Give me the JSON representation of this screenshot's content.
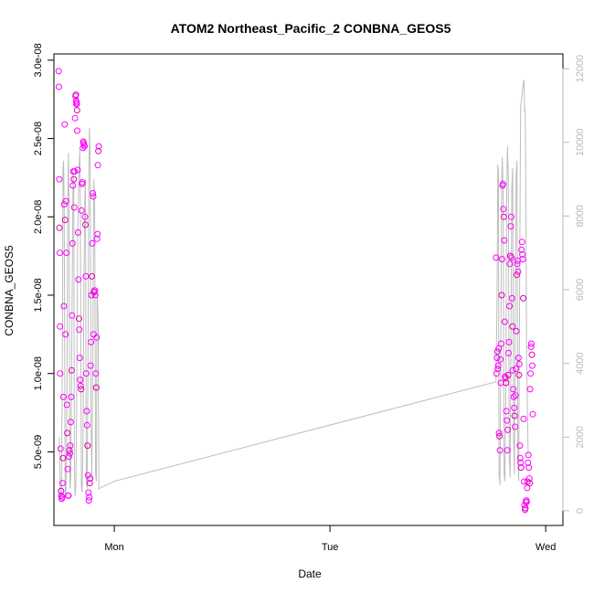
{
  "chart_data": {
    "type": "scatter",
    "title": "ATOM2 Northeast_Pacific_2 CONBNA_GEOS5",
    "xlabel": "Date",
    "ylabel": "CONBNA_GEOS5",
    "x_ticks": [
      "Mon",
      "Tue",
      "Wed"
    ],
    "x_tick_values": [
      1.0,
      2.0,
      3.0
    ],
    "xlim": [
      0.72,
      3.08
    ],
    "ylim": [
      3e-10,
      3.04e-08
    ],
    "y_ticks": [
      "5.0e-09",
      "1.0e-08",
      "1.5e-08",
      "2.0e-08",
      "2.5e-08",
      "3.0e-08"
    ],
    "y_tick_values": [
      5e-09,
      1e-08,
      1.5e-08,
      2e-08,
      2.5e-08,
      3e-08
    ],
    "y2lim": [
      -400,
      12400
    ],
    "y2_ticks": [
      "0",
      "2000",
      "4000",
      "6000",
      "8000",
      "10000",
      "12000"
    ],
    "y2_tick_values": [
      0,
      2000,
      4000,
      6000,
      8000,
      10000,
      12000
    ],
    "grid": false,
    "colors": {
      "points": "#ff00ff",
      "points_alt": "#dd00aa",
      "line": "#bdbdbd",
      "right_axis": "#b8b8b8",
      "axis": "#000000"
    },
    "series": [
      {
        "type": "scatter",
        "axis": "left",
        "points": [
          [
            0.742,
            2.93e-08
          ],
          [
            0.743,
            2.83e-08
          ],
          [
            0.745,
            2.24e-08
          ],
          [
            0.746,
            1.93e-08
          ],
          [
            0.747,
            1.77e-08
          ],
          [
            0.748,
            1.3e-08
          ],
          [
            0.749,
            1e-08
          ],
          [
            0.751,
            5.2e-09
          ],
          [
            0.753,
            2.5e-09
          ],
          [
            0.754,
            2.2e-09
          ],
          [
            0.756,
            2e-09
          ],
          [
            0.758,
            2.1e-09
          ],
          [
            0.76,
            3e-09
          ],
          [
            0.762,
            4.6e-09
          ],
          [
            0.764,
            8.5e-09
          ],
          [
            0.766,
            1.43e-08
          ],
          [
            0.768,
            2.08e-08
          ],
          [
            0.77,
            2.59e-08
          ],
          [
            0.772,
            1.98e-08
          ],
          [
            0.774,
            1.25e-08
          ],
          [
            0.776,
            2.1e-08
          ],
          [
            0.778,
            1.77e-08
          ],
          [
            0.78,
            8e-09
          ],
          [
            0.782,
            6.2e-09
          ],
          [
            0.784,
            3.9e-09
          ],
          [
            0.786,
            2.2e-09
          ],
          [
            0.788,
            2.2e-09
          ],
          [
            0.79,
            4.7e-09
          ],
          [
            0.792,
            5.1e-09
          ],
          [
            0.794,
            4.9e-09
          ],
          [
            0.796,
            5.4e-09
          ],
          [
            0.798,
            6.9e-09
          ],
          [
            0.8,
            8.5e-09
          ],
          [
            0.802,
            1.02e-08
          ],
          [
            0.804,
            1.37e-08
          ],
          [
            0.806,
            1.83e-08
          ],
          [
            0.808,
            2.2e-08
          ],
          [
            0.81,
            2.29e-08
          ],
          [
            0.812,
            2.24e-08
          ],
          [
            0.814,
            2.06e-08
          ],
          [
            0.816,
            2.29e-08
          ],
          [
            0.818,
            2.63e-08
          ],
          [
            0.82,
            2.77e-08
          ],
          [
            0.822,
            2.78e-08
          ],
          [
            0.823,
            2.74e-08
          ],
          [
            0.824,
            2.72e-08
          ],
          [
            0.825,
            2.73e-08
          ],
          [
            0.826,
            2.72e-08
          ],
          [
            0.827,
            2.68e-08
          ],
          [
            0.828,
            2.55e-08
          ],
          [
            0.83,
            2.3e-08
          ],
          [
            0.832,
            1.9e-08
          ],
          [
            0.834,
            1.6e-08
          ],
          [
            0.836,
            1.35e-08
          ],
          [
            0.838,
            1.28e-08
          ],
          [
            0.84,
            1.1e-08
          ],
          [
            0.842,
            9.6e-09
          ],
          [
            0.844,
            9.2e-09
          ],
          [
            0.846,
            9e-09
          ],
          [
            0.848,
            2.04e-08
          ],
          [
            0.85,
            2.21e-08
          ],
          [
            0.852,
            2.22e-08
          ],
          [
            0.854,
            2.44e-08
          ],
          [
            0.856,
            2.48e-08
          ],
          [
            0.858,
            2.47e-08
          ],
          [
            0.86,
            2.46e-08
          ],
          [
            0.862,
            2.45e-08
          ],
          [
            0.864,
            2e-08
          ],
          [
            0.866,
            1.95e-08
          ],
          [
            0.868,
            1.62e-08
          ],
          [
            0.87,
            1e-08
          ],
          [
            0.872,
            7.6e-09
          ],
          [
            0.874,
            6.7e-09
          ],
          [
            0.876,
            5.4e-09
          ],
          [
            0.878,
            3.5e-09
          ],
          [
            0.88,
            2.4e-09
          ],
          [
            0.882,
            1.9e-09
          ],
          [
            0.884,
            2.1e-09
          ],
          [
            0.886,
            3e-09
          ],
          [
            0.888,
            3.3e-09
          ],
          [
            0.89,
            1.05e-08
          ],
          [
            0.892,
            1.2e-08
          ],
          [
            0.894,
            1.5e-08
          ],
          [
            0.896,
            1.62e-08
          ],
          [
            0.898,
            1.83e-08
          ],
          [
            0.9,
            2.15e-08
          ],
          [
            0.902,
            2.13e-08
          ],
          [
            0.904,
            1.25e-08
          ],
          [
            0.906,
            1.52e-08
          ],
          [
            0.908,
            1.53e-08
          ],
          [
            0.91,
            1.53e-08
          ],
          [
            0.912,
            1.5e-08
          ],
          [
            0.914,
            1e-08
          ],
          [
            0.916,
            9.1e-09
          ],
          [
            0.918,
            1.23e-08
          ],
          [
            0.92,
            1.86e-08
          ],
          [
            0.922,
            1.89e-08
          ],
          [
            0.924,
            2.33e-08
          ],
          [
            0.926,
            2.42e-08
          ],
          [
            0.928,
            2.45e-08
          ],
          [
            2.77,
            1.74e-08
          ],
          [
            2.772,
            1e-08
          ],
          [
            2.774,
            1.1e-08
          ],
          [
            2.776,
            1.14e-08
          ],
          [
            2.778,
            1.03e-08
          ],
          [
            2.78,
            1.05e-08
          ],
          [
            2.782,
            1.16e-08
          ],
          [
            2.784,
            6.2e-09
          ],
          [
            2.786,
            6e-09
          ],
          [
            2.788,
            5.1e-09
          ],
          [
            2.79,
            1.09e-08
          ],
          [
            2.792,
            9.4e-09
          ],
          [
            2.794,
            1.19e-08
          ],
          [
            2.796,
            1.5e-08
          ],
          [
            2.798,
            1.73e-08
          ],
          [
            2.8,
            2.2e-08
          ],
          [
            2.802,
            2.21e-08
          ],
          [
            2.804,
            2.05e-08
          ],
          [
            2.806,
            2e-08
          ],
          [
            2.808,
            1.85e-08
          ],
          [
            2.81,
            1.33e-08
          ],
          [
            2.812,
            9.8e-09
          ],
          [
            2.814,
            9.7e-09
          ],
          [
            2.816,
            9.4e-09
          ],
          [
            2.818,
            7.6e-09
          ],
          [
            2.82,
            7e-09
          ],
          [
            2.822,
            5.1e-09
          ],
          [
            2.824,
            6.4e-09
          ],
          [
            2.826,
            9.9e-09
          ],
          [
            2.828,
            1.13e-08
          ],
          [
            2.83,
            1.2e-08
          ],
          [
            2.832,
            1.43e-08
          ],
          [
            2.834,
            1.7e-08
          ],
          [
            2.836,
            1.75e-08
          ],
          [
            2.838,
            1.94e-08
          ],
          [
            2.84,
            2e-08
          ],
          [
            2.842,
            1.74e-08
          ],
          [
            2.844,
            1.48e-08
          ],
          [
            2.846,
            1.3e-08
          ],
          [
            2.848,
            1.02e-08
          ],
          [
            2.85,
            9e-09
          ],
          [
            2.852,
            8.5e-09
          ],
          [
            2.854,
            7.8e-09
          ],
          [
            2.856,
            7.3e-09
          ],
          [
            2.858,
            6.6e-09
          ],
          [
            2.86,
            8.6e-09
          ],
          [
            2.862,
            1.03e-08
          ],
          [
            2.864,
            1.27e-08
          ],
          [
            2.866,
            1.63e-08
          ],
          [
            2.868,
            1.7e-08
          ],
          [
            2.87,
            1.72e-08
          ],
          [
            2.872,
            1.65e-08
          ],
          [
            2.874,
            1.1e-08
          ],
          [
            2.876,
            9.9e-09
          ],
          [
            2.878,
            1.06e-08
          ],
          [
            2.88,
            5.4e-09
          ],
          [
            2.882,
            4.6e-09
          ],
          [
            2.884,
            4.3e-09
          ],
          [
            2.886,
            4e-09
          ],
          [
            2.888,
            1.79e-08
          ],
          [
            2.89,
            1.84e-08
          ],
          [
            2.892,
            1.76e-08
          ],
          [
            2.894,
            1.73e-08
          ],
          [
            2.896,
            1.48e-08
          ],
          [
            2.898,
            7.1e-09
          ],
          [
            2.9,
            3.1e-09
          ],
          [
            2.902,
            1.6e-09
          ],
          [
            2.904,
            1.3e-09
          ],
          [
            2.906,
            1.4e-09
          ],
          [
            2.908,
            1.8e-09
          ],
          [
            2.91,
            1.9e-09
          ],
          [
            2.912,
            1.8e-09
          ],
          [
            2.914,
            2.7e-09
          ],
          [
            2.916,
            3.1e-09
          ],
          [
            2.918,
            4.3e-09
          ],
          [
            2.92,
            4.8e-09
          ],
          [
            2.922,
            4e-09
          ],
          [
            2.924,
            3.3e-09
          ],
          [
            2.926,
            3e-09
          ],
          [
            2.928,
            9e-09
          ],
          [
            2.93,
            1e-08
          ],
          [
            2.932,
            1.17e-08
          ],
          [
            2.934,
            1.19e-08
          ],
          [
            2.936,
            1.12e-08
          ],
          [
            2.938,
            1.05e-08
          ],
          [
            2.94,
            7.4e-09
          ]
        ]
      },
      {
        "type": "line",
        "axis": "right",
        "points": [
          [
            0.745,
            2000
          ],
          [
            0.75,
            300
          ],
          [
            0.755,
            600
          ],
          [
            0.76,
            5000
          ],
          [
            0.762,
            9300
          ],
          [
            0.765,
            9500
          ],
          [
            0.768,
            8000
          ],
          [
            0.772,
            400
          ],
          [
            0.776,
            500
          ],
          [
            0.78,
            3000
          ],
          [
            0.784,
            8200
          ],
          [
            0.787,
            9700
          ],
          [
            0.79,
            8500
          ],
          [
            0.794,
            600
          ],
          [
            0.798,
            900
          ],
          [
            0.802,
            4000
          ],
          [
            0.806,
            7000
          ],
          [
            0.809,
            9200
          ],
          [
            0.812,
            8800
          ],
          [
            0.815,
            1200
          ],
          [
            0.818,
            400
          ],
          [
            0.822,
            700
          ],
          [
            0.826,
            3500
          ],
          [
            0.83,
            7500
          ],
          [
            0.835,
            8900
          ],
          [
            0.84,
            9800
          ],
          [
            0.843,
            8000
          ],
          [
            0.847,
            700
          ],
          [
            0.851,
            500
          ],
          [
            0.855,
            2000
          ],
          [
            0.859,
            6000
          ],
          [
            0.863,
            8400
          ],
          [
            0.866,
            9000
          ],
          [
            0.87,
            900
          ],
          [
            0.874,
            600
          ],
          [
            0.878,
            4000
          ],
          [
            0.882,
            9000
          ],
          [
            0.885,
            10400
          ],
          [
            0.888,
            9500
          ],
          [
            0.892,
            2500
          ],
          [
            0.896,
            800
          ],
          [
            0.9,
            4000
          ],
          [
            0.905,
            9000
          ],
          [
            0.909,
            8200
          ],
          [
            0.913,
            1000
          ],
          [
            0.917,
            800
          ],
          [
            0.92,
            6000
          ],
          [
            0.925,
            5200
          ],
          [
            0.928,
            600
          ],
          [
            1.0,
            800
          ],
          [
            2.77,
            3500
          ],
          [
            2.775,
            6000
          ],
          [
            2.778,
            9400
          ],
          [
            2.781,
            9200
          ],
          [
            2.784,
            1000
          ],
          [
            2.788,
            700
          ],
          [
            2.792,
            4000
          ],
          [
            2.796,
            9000
          ],
          [
            2.799,
            9600
          ],
          [
            2.803,
            8500
          ],
          [
            2.807,
            1000
          ],
          [
            2.811,
            800
          ],
          [
            2.815,
            3000
          ],
          [
            2.819,
            8500
          ],
          [
            2.823,
            9900
          ],
          [
            2.827,
            9000
          ],
          [
            2.831,
            1500
          ],
          [
            2.835,
            900
          ],
          [
            2.839,
            4500
          ],
          [
            2.843,
            8800
          ],
          [
            2.847,
            9300
          ],
          [
            2.851,
            2000
          ],
          [
            2.855,
            1000
          ],
          [
            2.859,
            5000
          ],
          [
            2.863,
            9100
          ],
          [
            2.867,
            9500
          ],
          [
            2.871,
            1500
          ],
          [
            2.875,
            800
          ],
          [
            2.879,
            6000
          ],
          [
            2.884,
            11000
          ],
          [
            2.889,
            11200
          ],
          [
            2.894,
            11500
          ],
          [
            2.899,
            11700
          ],
          [
            2.903,
            10800
          ],
          [
            2.905,
            10900
          ],
          [
            2.908,
            9000
          ],
          [
            2.912,
            4000
          ],
          [
            2.916,
            2500
          ],
          [
            2.919,
            1500
          ]
        ]
      }
    ]
  }
}
